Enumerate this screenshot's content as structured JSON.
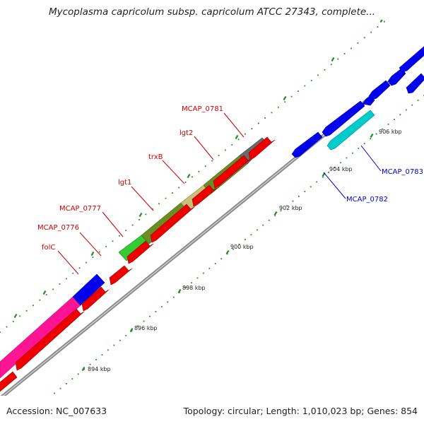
{
  "title": "Mycoplasma capricolum subsp. capricolum ATCC 27343, complete...",
  "footer": {
    "accession": "Accession: NC_007633",
    "topology": "Topology: circular; Length: 1,010,023 bp; Genes: 854"
  },
  "colors": {
    "backbone": "#8a8a8a",
    "tick": "#2a8a2a",
    "forward_label": "#cc0000",
    "reverse_label": "#0000cc"
  },
  "ticks": [
    {
      "label": "894 kbp"
    },
    {
      "label": "896 kbp"
    },
    {
      "label": "898 kbp"
    },
    {
      "label": "900 kbp"
    },
    {
      "label": "902 kbp"
    },
    {
      "label": "904 kbp"
    },
    {
      "label": "906 kbp"
    }
  ],
  "labels": [
    {
      "text": "folC",
      "strand": "forward"
    },
    {
      "text": "MCAP_0776",
      "strand": "forward"
    },
    {
      "text": "MCAP_0777",
      "strand": "forward"
    },
    {
      "text": "lgt1",
      "strand": "forward"
    },
    {
      "text": "trxB",
      "strand": "forward"
    },
    {
      "text": "lgt2",
      "strand": "forward"
    },
    {
      "text": "MCAP_0781",
      "strand": "forward"
    },
    {
      "text": "MCAP_0782",
      "strand": "reverse"
    },
    {
      "text": "MCAP_0783",
      "strand": "reverse"
    }
  ]
}
